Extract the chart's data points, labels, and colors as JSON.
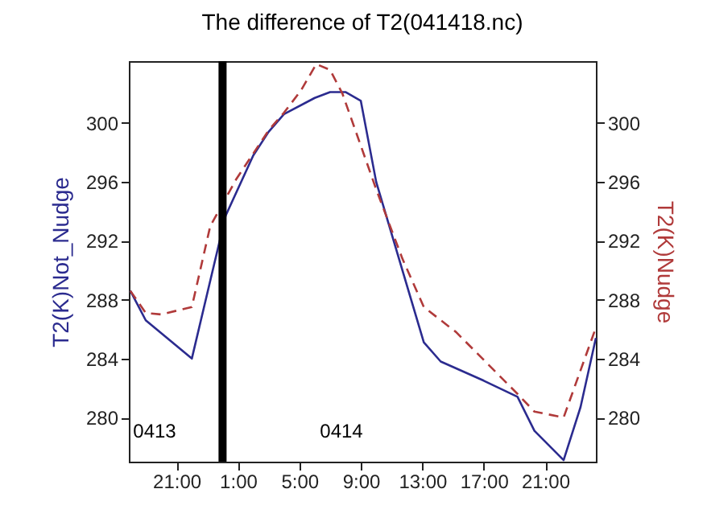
{
  "chart_data": {
    "type": "line",
    "title": "The difference of T2(041418.nc)",
    "ylabel": "T2(K)Not_Nudge",
    "y2label": "T2(K)Nudge",
    "xlim": [
      "--04-13T17:54",
      "--04-15T00:18"
    ],
    "xticks": [
      {
        "value": "--04-13T21:00",
        "label": "21:00"
      },
      {
        "value": "--04-14T01:00",
        "label": "1:00"
      },
      {
        "value": "--04-14T05:00",
        "label": "5:00"
      },
      {
        "value": "--04-14T09:00",
        "label": "9:00"
      },
      {
        "value": "--04-14T13:00",
        "label": "13:00"
      },
      {
        "value": "--04-14T17:00",
        "label": "17:00"
      },
      {
        "value": "--04-14T21:00",
        "label": "21:00"
      }
    ],
    "ylim": [
      277,
      304.2
    ],
    "yticks": [
      280,
      284,
      288,
      292,
      296,
      300
    ],
    "y2lim": [
      277,
      304.2
    ],
    "y2ticks": [
      280,
      284,
      288,
      292,
      296,
      300
    ],
    "grid": false,
    "marker": "none",
    "series": [
      {
        "color": "#2b2b8f",
        "line_style": "solid",
        "x": [
          "--04-13T18:00",
          "--04-13T19:00",
          "--04-13T22:00",
          "--04-14T00:12",
          "--04-14T02:00",
          "--04-14T03:00",
          "--04-14T04:00",
          "--04-14T06:00",
          "--04-14T07:00",
          "--04-14T08:00",
          "--04-14T09:00",
          "--04-14T10:00",
          "--04-14T13:06",
          "--04-14T14:12",
          "--04-14T17:00",
          "--04-14T19:12",
          "--04-14T20:18",
          "--04-14T22:12",
          "--04-14T23:18",
          "--04-15T00:18"
        ],
        "values": [
          288.6,
          286.6,
          284.0,
          293.7,
          297.8,
          299.4,
          300.6,
          301.7,
          302.1,
          302.1,
          301.5,
          296.0,
          285.1,
          283.8,
          282.5,
          281.4,
          279.1,
          277.1,
          280.7,
          285.4
        ]
      },
      {
        "color": "#b03a3a",
        "line_style": "dashed",
        "axis": "y2",
        "x": [
          "--04-13T18:00",
          "--04-13T19:00",
          "--04-13T20:00",
          "--04-13T22:00",
          "--04-13T23:12",
          "--04-14T00:54",
          "--04-14T03:00",
          "--04-14T04:00",
          "--04-14T05:06",
          "--04-14T06:06",
          "--04-14T07:00",
          "--04-14T07:48",
          "--04-14T10:00",
          "--04-14T11:42",
          "--04-14T13:06",
          "--04-14T15:12",
          "--04-14T19:12",
          "--04-14T20:18",
          "--04-14T22:12",
          "--04-15T00:18"
        ],
        "values": [
          288.6,
          287.1,
          287.0,
          287.5,
          293.0,
          296.2,
          299.5,
          300.7,
          302.2,
          304.0,
          303.6,
          302.0,
          295.5,
          290.8,
          287.5,
          285.8,
          281.6,
          280.4,
          280.0,
          286.1
        ]
      }
    ],
    "ref_lines": [
      {
        "axis": "x",
        "value": "--04-14T00:00",
        "color": "#000000",
        "line_style": "solid"
      }
    ],
    "annotations": [
      "0413",
      "0414"
    ]
  }
}
